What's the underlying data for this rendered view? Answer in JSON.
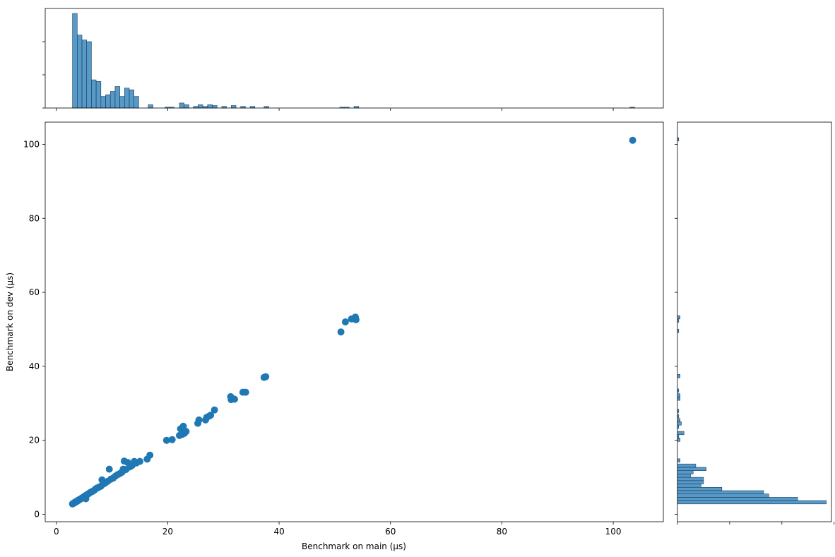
{
  "chart_data": {
    "type": "scatter",
    "title": "",
    "xlabel": "Benchmark on main (µs)",
    "ylabel": "Benchmark on dev (µs)",
    "xlim": [
      -2,
      109
    ],
    "ylim": [
      -2,
      106
    ],
    "xticks": [
      0,
      20,
      40,
      60,
      80,
      100
    ],
    "yticks": [
      0,
      20,
      40,
      60,
      80,
      100
    ],
    "xtick_labels": [
      "0",
      "20",
      "40",
      "60",
      "80",
      "100"
    ],
    "ytick_labels": [
      "0",
      "20",
      "40",
      "60",
      "80",
      "100"
    ],
    "grid": false,
    "color": "#1f77b4",
    "points": [
      [
        2.9,
        2.8
      ],
      [
        3.0,
        2.9
      ],
      [
        3.1,
        3.0
      ],
      [
        3.2,
        3.1
      ],
      [
        3.3,
        3.2
      ],
      [
        3.4,
        3.3
      ],
      [
        3.5,
        3.3
      ],
      [
        3.6,
        3.5
      ],
      [
        3.8,
        3.6
      ],
      [
        3.9,
        3.7
      ],
      [
        4.0,
        3.9
      ],
      [
        4.2,
        4.0
      ],
      [
        4.3,
        4.1
      ],
      [
        4.5,
        4.3
      ],
      [
        4.6,
        4.4
      ],
      [
        4.8,
        4.6
      ],
      [
        5.0,
        4.8
      ],
      [
        5.2,
        5.0
      ],
      [
        5.3,
        4.2
      ],
      [
        5.4,
        5.2
      ],
      [
        5.6,
        5.4
      ],
      [
        5.8,
        5.6
      ],
      [
        6.0,
        5.8
      ],
      [
        6.2,
        6.0
      ],
      [
        6.5,
        6.2
      ],
      [
        6.8,
        6.5
      ],
      [
        7.0,
        6.8
      ],
      [
        7.3,
        7.1
      ],
      [
        7.6,
        7.3
      ],
      [
        8.0,
        7.6
      ],
      [
        8.2,
        9.3
      ],
      [
        8.5,
        8.2
      ],
      [
        8.8,
        8.5
      ],
      [
        9.2,
        8.9
      ],
      [
        9.5,
        12.2
      ],
      [
        9.8,
        9.5
      ],
      [
        10.2,
        9.8
      ],
      [
        10.6,
        10.3
      ],
      [
        11.0,
        10.7
      ],
      [
        11.4,
        11.0
      ],
      [
        11.8,
        11.4
      ],
      [
        12.0,
        12.2
      ],
      [
        12.2,
        14.4
      ],
      [
        12.5,
        12.1
      ],
      [
        12.8,
        14.0
      ],
      [
        13.2,
        12.8
      ],
      [
        13.6,
        13.2
      ],
      [
        14.0,
        14.3
      ],
      [
        14.4,
        13.9
      ],
      [
        15.0,
        14.3
      ],
      [
        16.3,
        14.9
      ],
      [
        16.8,
        16.0
      ],
      [
        19.8,
        20.0
      ],
      [
        20.8,
        20.2
      ],
      [
        22.1,
        21.3
      ],
      [
        22.3,
        23.1
      ],
      [
        22.6,
        21.6
      ],
      [
        22.8,
        23.8
      ],
      [
        23.0,
        21.9
      ],
      [
        23.3,
        22.4
      ],
      [
        25.4,
        24.6
      ],
      [
        25.6,
        25.5
      ],
      [
        26.8,
        25.5
      ],
      [
        27.0,
        26.2
      ],
      [
        27.4,
        26.5
      ],
      [
        27.7,
        26.8
      ],
      [
        28.4,
        28.2
      ],
      [
        31.3,
        31.8
      ],
      [
        31.4,
        31.0
      ],
      [
        32.0,
        31.1
      ],
      [
        33.5,
        33.0
      ],
      [
        34.0,
        33.0
      ],
      [
        37.3,
        37.0
      ],
      [
        37.6,
        37.2
      ],
      [
        51.1,
        49.3
      ],
      [
        51.9,
        52.0
      ],
      [
        53.0,
        52.8
      ],
      [
        53.5,
        52.9
      ],
      [
        53.7,
        53.3
      ],
      [
        53.8,
        52.6
      ],
      [
        103.5,
        101.1
      ]
    ],
    "marginal_x_hist": {
      "bin_width": 0.85,
      "bins": [
        [
          2.9,
          57
        ],
        [
          3.75,
          44
        ],
        [
          4.6,
          41
        ],
        [
          5.45,
          40
        ],
        [
          6.3,
          17
        ],
        [
          7.15,
          16
        ],
        [
          8.0,
          7
        ],
        [
          8.85,
          8
        ],
        [
          9.7,
          10
        ],
        [
          10.55,
          13
        ],
        [
          11.4,
          7
        ],
        [
          12.25,
          12
        ],
        [
          13.1,
          11
        ],
        [
          13.95,
          7
        ],
        [
          16.5,
          2
        ],
        [
          19.5,
          0.5
        ],
        [
          20.3,
          0.5
        ],
        [
          22.1,
          3
        ],
        [
          22.95,
          2
        ],
        [
          24.6,
          1
        ],
        [
          25.45,
          2
        ],
        [
          26.3,
          1
        ],
        [
          27.15,
          2
        ],
        [
          28.0,
          1.5
        ],
        [
          29.7,
          1
        ],
        [
          31.4,
          1.5
        ],
        [
          33.1,
          1
        ],
        [
          34.8,
          1
        ],
        [
          37.3,
          1
        ],
        [
          50.9,
          0.5
        ],
        [
          51.75,
          0.5
        ],
        [
          53.45,
          1
        ],
        [
          103.0,
          0.5
        ]
      ]
    },
    "marginal_y_hist": {
      "bin_width": 0.9,
      "bins": [
        [
          2.8,
          57
        ],
        [
          3.7,
          46
        ],
        [
          4.6,
          35
        ],
        [
          5.5,
          33
        ],
        [
          6.4,
          17
        ],
        [
          7.3,
          9
        ],
        [
          8.2,
          10
        ],
        [
          9.1,
          10
        ],
        [
          10.0,
          5
        ],
        [
          10.9,
          6
        ],
        [
          11.8,
          11
        ],
        [
          12.7,
          7
        ],
        [
          14.1,
          1
        ],
        [
          19.7,
          1
        ],
        [
          20.6,
          0.5
        ],
        [
          21.5,
          2.5
        ],
        [
          23.2,
          0.5
        ],
        [
          24.1,
          1.5
        ],
        [
          25.0,
          1
        ],
        [
          26.1,
          0.5
        ],
        [
          27.5,
          0.5
        ],
        [
          30.8,
          1
        ],
        [
          31.7,
          1
        ],
        [
          33.0,
          0.5
        ],
        [
          36.9,
          1
        ],
        [
          49.1,
          0.5
        ],
        [
          51.9,
          0.5
        ],
        [
          52.8,
          1
        ],
        [
          100.9,
          0.5
        ]
      ]
    }
  }
}
